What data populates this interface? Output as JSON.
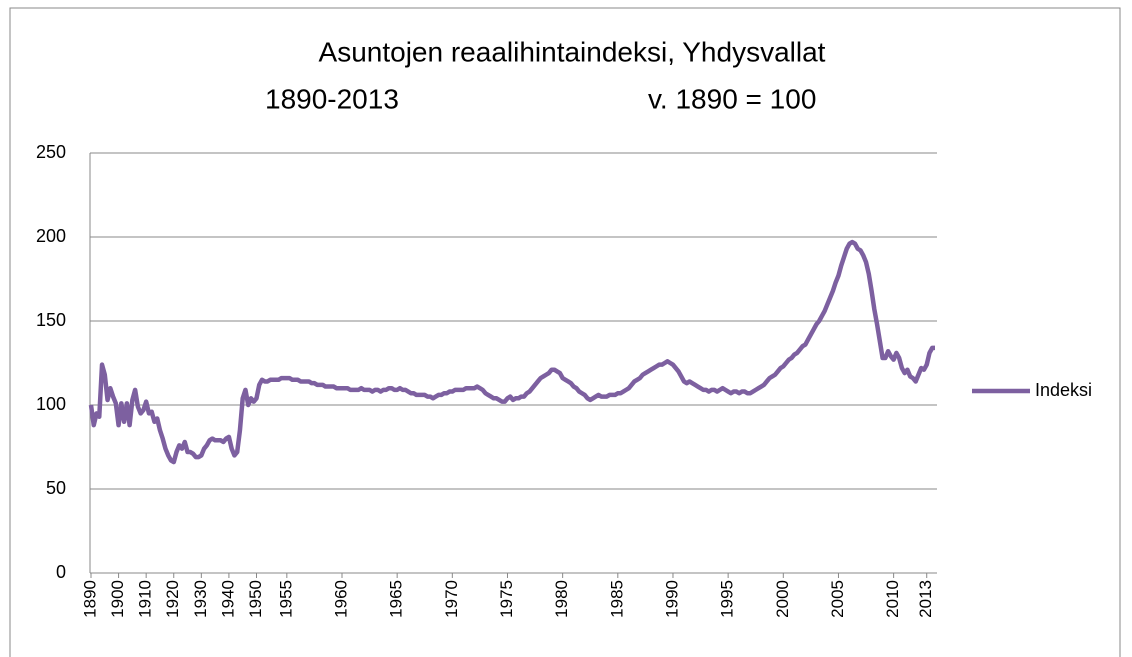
{
  "chart_data": {
    "type": "line",
    "title": "Asuntojen reaalihintaindeksi, Yhdysvallat",
    "subtitle": "1890-2013",
    "note": "v. 1890 = 100",
    "categories": [
      "1890",
      null,
      null,
      null,
      null,
      null,
      null,
      null,
      null,
      null,
      "1900",
      null,
      null,
      null,
      null,
      null,
      null,
      null,
      null,
      null,
      "1910",
      null,
      null,
      null,
      null,
      null,
      null,
      null,
      null,
      null,
      "1920",
      null,
      null,
      null,
      null,
      null,
      null,
      null,
      null,
      null,
      "1930",
      null,
      null,
      null,
      null,
      null,
      null,
      null,
      null,
      null,
      "1940",
      null,
      null,
      null,
      null,
      null,
      null,
      null,
      null,
      null,
      "1950",
      null,
      null,
      null,
      null,
      null,
      null,
      null,
      null,
      null,
      null,
      "1955",
      null,
      null,
      null,
      null,
      null,
      null,
      null,
      null,
      null,
      null,
      null,
      null,
      null,
      null,
      null,
      null,
      null,
      null,
      null,
      "1960",
      null,
      null,
      null,
      null,
      null,
      null,
      null,
      null,
      null,
      null,
      null,
      null,
      null,
      null,
      null,
      null,
      null,
      null,
      null,
      "1965",
      null,
      null,
      null,
      null,
      null,
      null,
      null,
      null,
      null,
      null,
      null,
      null,
      null,
      null,
      null,
      null,
      null,
      null,
      null,
      "1970",
      null,
      null,
      null,
      null,
      null,
      null,
      null,
      null,
      null,
      null,
      null,
      null,
      null,
      null,
      null,
      null,
      null,
      null,
      null,
      "1975",
      null,
      null,
      null,
      null,
      null,
      null,
      null,
      null,
      null,
      null,
      null,
      null,
      null,
      null,
      null,
      null,
      null,
      null,
      null,
      "1980",
      null,
      null,
      null,
      null,
      null,
      null,
      null,
      null,
      null,
      null,
      null,
      null,
      null,
      null,
      null,
      null,
      null,
      null,
      null,
      "1985",
      null,
      null,
      null,
      null,
      null,
      null,
      null,
      null,
      null,
      null,
      null,
      null,
      null,
      null,
      null,
      null,
      null,
      null,
      null,
      "1990",
      null,
      null,
      null,
      null,
      null,
      null,
      null,
      null,
      null,
      null,
      null,
      null,
      null,
      null,
      null,
      null,
      null,
      null,
      null,
      "1995",
      null,
      null,
      null,
      null,
      null,
      null,
      null,
      null,
      null,
      null,
      null,
      null,
      null,
      null,
      null,
      null,
      null,
      null,
      null,
      "2000",
      null,
      null,
      null,
      null,
      null,
      null,
      null,
      null,
      null,
      null,
      null,
      null,
      null,
      null,
      null,
      null,
      null,
      null,
      null,
      "2005",
      null,
      null,
      null,
      null,
      null,
      null,
      null,
      null,
      null,
      null,
      null,
      null,
      null,
      null,
      null,
      null,
      null,
      null,
      null,
      "2010",
      null,
      null,
      null,
      null,
      null,
      null,
      null,
      null,
      null,
      null,
      null,
      "2013",
      null,
      null,
      null
    ],
    "series": [
      {
        "name": "Indeksi",
        "color": "#7d60a0",
        "values": [
          100,
          88,
          95,
          93,
          124,
          118,
          103,
          110,
          105,
          101,
          88,
          101,
          90,
          101,
          88,
          103,
          109,
          99,
          95,
          97,
          102,
          95,
          96,
          90,
          92,
          85,
          80,
          74,
          70,
          67,
          66,
          72,
          76,
          74,
          78,
          72,
          72,
          71,
          69,
          69,
          70,
          74,
          76,
          79,
          80,
          79,
          79,
          79,
          78,
          80,
          81,
          74,
          70,
          72,
          85,
          104,
          109,
          100,
          104,
          102,
          104,
          112,
          115,
          114,
          114,
          115,
          115,
          115,
          115,
          116,
          116,
          116,
          116,
          115,
          115,
          115,
          114,
          114,
          114,
          114,
          113,
          113,
          112,
          112,
          112,
          111,
          111,
          111,
          111,
          110,
          110,
          110,
          110,
          110,
          109,
          109,
          109,
          109,
          110,
          109,
          109,
          109,
          108,
          109,
          109,
          108,
          109,
          109,
          110,
          110,
          109,
          109,
          110,
          109,
          109,
          108,
          107,
          107,
          106,
          106,
          106,
          106,
          105,
          105,
          104,
          105,
          106,
          106,
          107,
          107,
          108,
          108,
          109,
          109,
          109,
          109,
          110,
          110,
          110,
          110,
          111,
          110,
          109,
          107,
          106,
          105,
          104,
          104,
          103,
          102,
          102,
          104,
          105,
          103,
          104,
          104,
          105,
          105,
          107,
          108,
          110,
          112,
          114,
          116,
          117,
          118,
          119,
          121,
          121,
          120,
          119,
          116,
          115,
          114,
          113,
          111,
          110,
          108,
          107,
          106,
          104,
          103,
          104,
          105,
          106,
          105,
          105,
          105,
          106,
          106,
          106,
          107,
          107,
          108,
          109,
          110,
          112,
          114,
          115,
          116,
          118,
          119,
          120,
          121,
          122,
          123,
          124,
          124,
          125,
          126,
          125,
          124,
          122,
          120,
          117,
          114,
          113,
          114,
          113,
          112,
          111,
          110,
          109,
          109,
          108,
          109,
          109,
          108,
          109,
          110,
          109,
          108,
          107,
          108,
          108,
          107,
          108,
          108,
          107,
          107,
          108,
          109,
          110,
          111,
          112,
          114,
          116,
          117,
          118,
          120,
          122,
          123,
          125,
          127,
          128,
          130,
          131,
          133,
          135,
          136,
          139,
          142,
          145,
          148,
          150,
          153,
          156,
          160,
          164,
          168,
          173,
          177,
          183,
          188,
          193,
          196,
          197,
          196,
          193,
          192,
          189,
          185,
          178,
          168,
          157,
          148,
          138,
          128,
          128,
          132,
          129,
          127,
          131,
          128,
          122,
          119,
          121,
          117,
          116,
          114,
          118,
          122,
          121,
          124,
          131,
          134,
          134
        ]
      }
    ],
    "ylim": [
      0,
      250
    ],
    "yticks": [
      0,
      50,
      100,
      150,
      200,
      250
    ],
    "grid": true,
    "legend": "right"
  }
}
